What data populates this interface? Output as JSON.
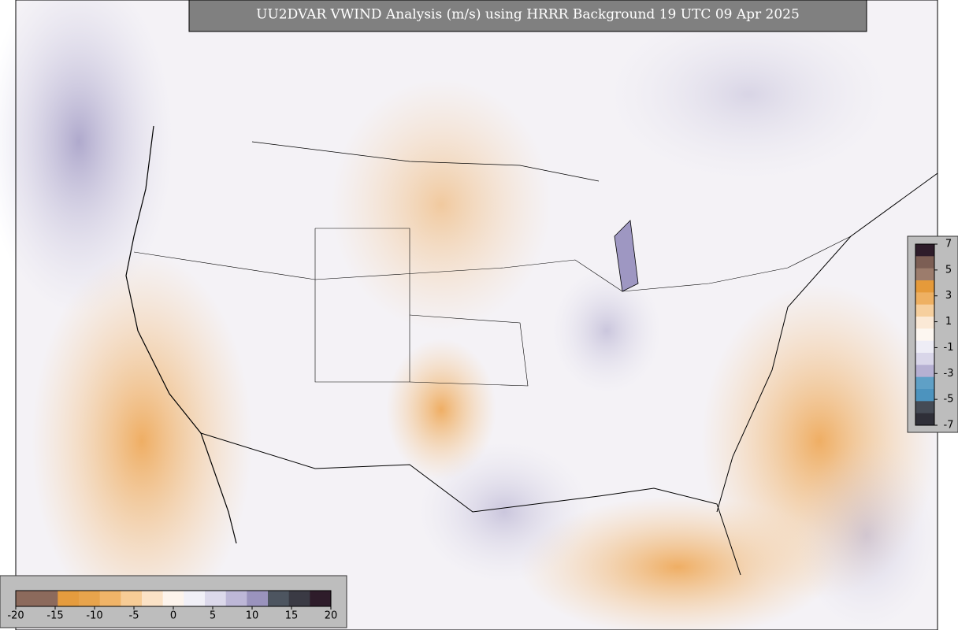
{
  "title": "UU2DVAR VWIND Analysis (m/s) using HRRR Background 19 UTC 09 Apr 2025",
  "bottom_colorbar": {
    "ticks": [
      -20,
      -15,
      -10,
      -5,
      0,
      5,
      10,
      15,
      20
    ],
    "colors": [
      "#8c6a5c",
      "#8c6a5c",
      "#e59c3e",
      "#e8a44c",
      "#f0b468",
      "#f7cc96",
      "#fbe2c6",
      "#fdf4ec",
      "#f1f0f7",
      "#dcd9eb",
      "#bdb7d7",
      "#9a93bd",
      "#4d5560",
      "#3a3a44",
      "#2e1c2a"
    ]
  },
  "right_colorbar": {
    "ticks": [
      7,
      5,
      3,
      1,
      -1,
      -3,
      -5,
      -7
    ],
    "colors": [
      "#2e1c2a",
      "#7c5e54",
      "#9c7c6c",
      "#e59a3a",
      "#eeb062",
      "#f6cf9e",
      "#fbe9d6",
      "#fdf7f1",
      "#eeedf6",
      "#d9d6e9",
      "#b6b0d2",
      "#5fa0c6",
      "#4c93be",
      "#454b55",
      "#2f2f38"
    ]
  }
}
